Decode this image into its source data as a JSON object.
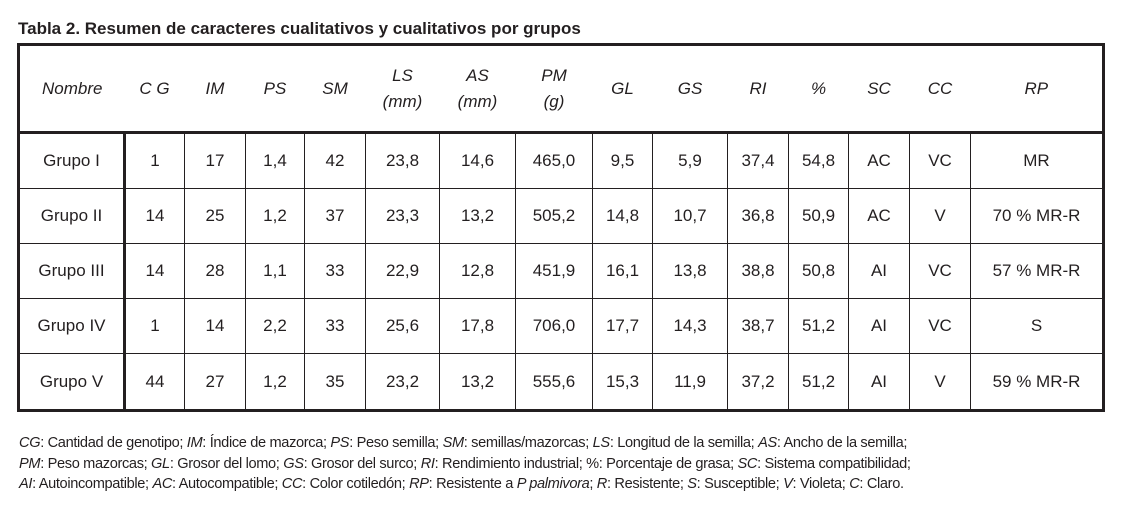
{
  "title": "Tabla 2. Resumen de caracteres cualitativos y cualitativos por grupos",
  "headers": [
    [
      "Nombre"
    ],
    [
      "C G"
    ],
    [
      "IM"
    ],
    [
      "PS"
    ],
    [
      "SM"
    ],
    [
      "LS",
      "(mm)"
    ],
    [
      "AS",
      "(mm)"
    ],
    [
      "PM",
      "(g)"
    ],
    [
      "GL"
    ],
    [
      "GS"
    ],
    [
      "RI"
    ],
    [
      "%"
    ],
    [
      "SC"
    ],
    [
      "CC"
    ],
    [
      "RP"
    ]
  ],
  "rows": [
    [
      "Grupo I",
      "1",
      "17",
      "1,4",
      "42",
      "23,8",
      "14,6",
      "465,0",
      "9,5",
      "5,9",
      "37,4",
      "54,8",
      "AC",
      "VC",
      "MR"
    ],
    [
      "Grupo II",
      "14",
      "25",
      "1,2",
      "37",
      "23,3",
      "13,2",
      "505,2",
      "14,8",
      "10,7",
      "36,8",
      "50,9",
      "AC",
      "V",
      "70 % MR-R"
    ],
    [
      "Grupo III",
      "14",
      "28",
      "1,1",
      "33",
      "22,9",
      "12,8",
      "451,9",
      "16,1",
      "13,8",
      "38,8",
      "50,8",
      "AI",
      "VC",
      "57 % MR-R"
    ],
    [
      "Grupo IV",
      "1",
      "14",
      "2,2",
      "33",
      "25,6",
      "17,8",
      "706,0",
      "17,7",
      "14,3",
      "38,7",
      "51,2",
      "AI",
      "VC",
      "S"
    ],
    [
      "Grupo V",
      "44",
      "27",
      "1,2",
      "35",
      "23,2",
      "13,2",
      "555,6",
      "15,3",
      "11,9",
      "37,2",
      "51,2",
      "AI",
      "V",
      "59 % MR-R"
    ]
  ],
  "footnote": [
    [
      [
        "CG",
        "i"
      ],
      [
        ": Cantidad de genotipo; ",
        ""
      ],
      [
        "IM",
        "i"
      ],
      [
        ": Índice de mazorca; ",
        ""
      ],
      [
        "PS",
        "i"
      ],
      [
        ": Peso semilla; ",
        ""
      ],
      [
        "SM",
        "i"
      ],
      [
        ": semillas/mazorcas; ",
        ""
      ],
      [
        "LS",
        "i"
      ],
      [
        ": Longitud de la semilla; ",
        ""
      ],
      [
        "AS",
        "i"
      ],
      [
        ": Ancho de la semilla;",
        ""
      ]
    ],
    [
      [
        "PM",
        "i"
      ],
      [
        ": Peso mazorcas; ",
        ""
      ],
      [
        "GL",
        "i"
      ],
      [
        ": Grosor del lomo; ",
        ""
      ],
      [
        "GS",
        "i"
      ],
      [
        ": Grosor del surco; ",
        ""
      ],
      [
        "RI",
        "i"
      ],
      [
        ": Rendimiento industrial; %: Porcentaje de grasa; ",
        ""
      ],
      [
        "SC",
        "i"
      ],
      [
        ": Sistema compatibilidad;",
        ""
      ]
    ],
    [
      [
        "AI",
        "i"
      ],
      [
        ": Autoincompatible; ",
        ""
      ],
      [
        "AC",
        "i"
      ],
      [
        ": Autocompatible; ",
        ""
      ],
      [
        "CC",
        "i"
      ],
      [
        ": Color cotiledón; ",
        ""
      ],
      [
        "RP",
        "i"
      ],
      [
        ": Resistente a ",
        ""
      ],
      [
        "P palmivora",
        "i"
      ],
      [
        "; ",
        ""
      ],
      [
        "R",
        "i"
      ],
      [
        ": Resistente; ",
        ""
      ],
      [
        "S",
        "i"
      ],
      [
        ": Susceptible; ",
        ""
      ],
      [
        "V",
        "i"
      ],
      [
        ": Violeta; ",
        ""
      ],
      [
        "C",
        "i"
      ],
      [
        ": Claro.",
        ""
      ]
    ]
  ]
}
